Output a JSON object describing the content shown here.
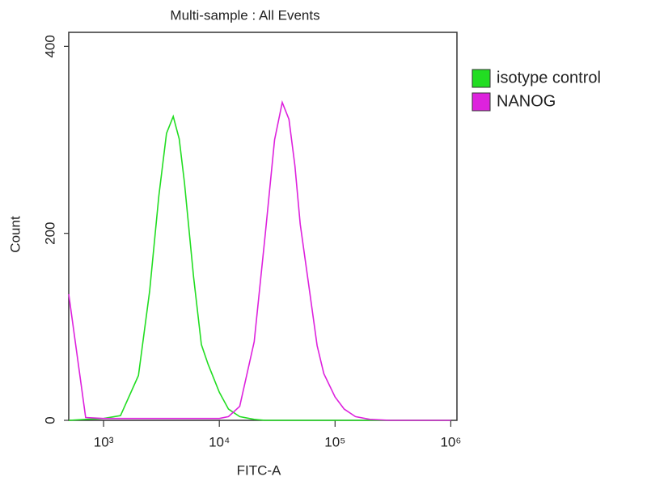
{
  "chart_data": {
    "type": "line",
    "title": "Multi-sample : All Events",
    "x_label": "FITC-A",
    "y_label": "Count",
    "x_scale": "log",
    "x": [
      500,
      700,
      1000,
      1400,
      2000,
      2500,
      3000,
      3500,
      4000,
      4500,
      5000,
      6000,
      7000,
      8000,
      10000,
      12000,
      15000,
      20000,
      25000,
      30000,
      35000,
      40000,
      45000,
      50000,
      60000,
      70000,
      80000,
      100000,
      120000,
      150000,
      200000,
      300000,
      1000000
    ],
    "series": [
      {
        "name": "isotype control",
        "color": "#22dd22",
        "values": [
          0,
          1,
          2,
          5,
          48,
          138,
          240,
          307,
          325,
          301,
          254,
          153,
          81,
          60,
          30,
          12,
          4,
          1,
          0,
          0,
          0,
          0,
          0,
          0,
          0,
          0,
          0,
          0,
          0,
          0,
          0,
          0,
          0
        ]
      },
      {
        "name": "NANOG",
        "color": "#dd22dd",
        "values": [
          135,
          3,
          2,
          2,
          2,
          2,
          2,
          2,
          2,
          2,
          2,
          2,
          2,
          2,
          2,
          4,
          15,
          84,
          200,
          300,
          340,
          322,
          272,
          210,
          140,
          80,
          50,
          25,
          12,
          4,
          1,
          0,
          0
        ]
      }
    ],
    "xlim": [
      500,
      1130000
    ],
    "ylim": [
      0,
      415
    ],
    "xticks": [
      {
        "value": 1000,
        "label": "10³"
      },
      {
        "value": 10000,
        "label": "10⁴"
      },
      {
        "value": 100000,
        "label": "10⁵"
      },
      {
        "value": 1000000,
        "label": "10⁶"
      }
    ],
    "yticks": [
      0,
      200,
      400
    ],
    "legend": "right"
  }
}
